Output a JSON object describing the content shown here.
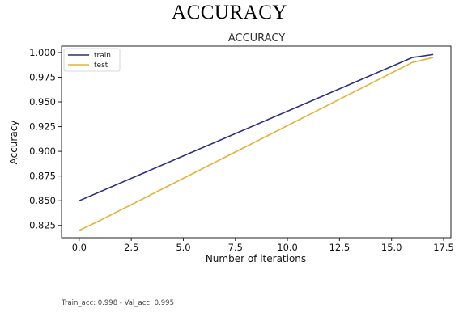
{
  "page": {
    "heading": "ACCURACY",
    "footer_note": "Train_acc: 0.998 - Val_acc: 0.995"
  },
  "chart_data": {
    "type": "line",
    "title": "ACCURACY",
    "xlabel": "Number of iterations",
    "ylabel": "Accuracy",
    "xlim": [
      -0.85,
      17.85
    ],
    "ylim": [
      0.8125,
      1.0065
    ],
    "xticks": [
      0,
      2.5,
      5,
      7.5,
      10,
      12.5,
      15,
      17.5
    ],
    "xtick_labels": [
      "0.0",
      "2.5",
      "5.0",
      "7.5",
      "10.0",
      "12.5",
      "15.0",
      "17.5"
    ],
    "yticks": [
      0.825,
      0.85,
      0.875,
      0.9,
      0.925,
      0.95,
      0.975,
      1.0
    ],
    "ytick_labels": [
      "0.825",
      "0.850",
      "0.875",
      "0.900",
      "0.925",
      "0.950",
      "0.975",
      "1.000"
    ],
    "grid": false,
    "legend_position": "upper-left",
    "series": [
      {
        "name": "train",
        "color": "#2b2f7f",
        "x": [
          0,
          16,
          17
        ],
        "y": [
          0.85,
          0.995,
          0.998
        ]
      },
      {
        "name": "test",
        "color": "#e2b23c",
        "x": [
          0,
          1,
          16,
          17
        ],
        "y": [
          0.82,
          0.83,
          0.99,
          0.995
        ]
      }
    ]
  }
}
